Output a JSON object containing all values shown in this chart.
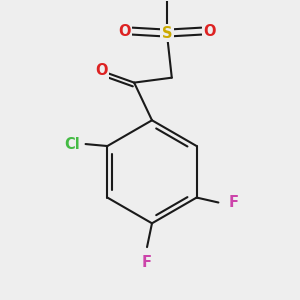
{
  "background_color": "#eeeeee",
  "bond_color": "#1a1a1a",
  "bond_width": 1.5,
  "atom_labels": {
    "Cl": {
      "color": "#44bb44",
      "fontsize": 10.5,
      "fontweight": "bold"
    },
    "F": {
      "color": "#cc44aa",
      "fontsize": 10.5,
      "fontweight": "bold"
    },
    "O": {
      "color": "#dd2222",
      "fontsize": 10.5,
      "fontweight": "bold"
    },
    "S": {
      "color": "#ccaa00",
      "fontsize": 10.5,
      "fontweight": "bold"
    }
  },
  "figsize": [
    3.0,
    3.0
  ],
  "dpi": 100
}
